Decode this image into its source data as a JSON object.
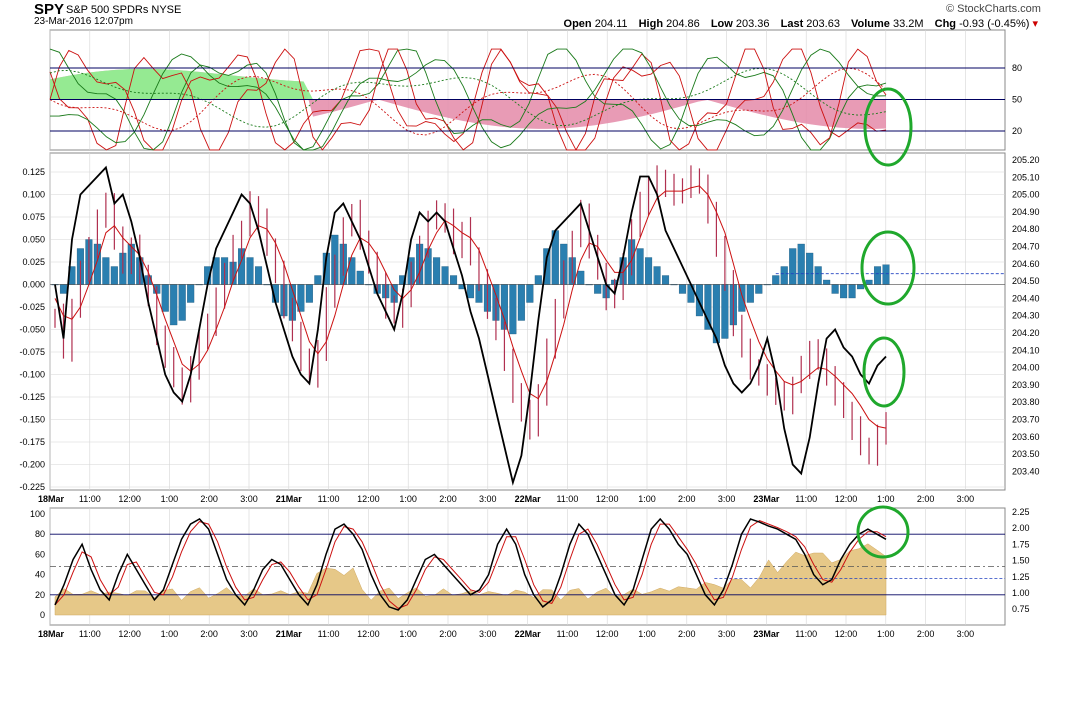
{
  "header": {
    "symbol": "SPY",
    "name": "S&P 500 SPDRs",
    "exchange": "NYSE",
    "datetime": "23-Mar-2016 12:07pm",
    "brand": "© StockCharts.com",
    "open_label": "Open",
    "open": "204.11",
    "high_label": "High",
    "high": "204.86",
    "low_label": "Low",
    "low": "203.36",
    "last_label": "Last",
    "last": "203.63",
    "volume_label": "Volume",
    "volume": "33.2M",
    "chg_label": "Chg",
    "chg": "-0.93 (-0.45%)"
  },
  "colors": {
    "price_bar": "#b03050",
    "ma_line": "#cc1111",
    "osc_line": "#000000",
    "histogram": "#2a7fb0",
    "upper_fill": "#90ee90",
    "lower_fill": "#e48aa8",
    "volume_fill": "#e6c888",
    "annotation": "#1fa82c",
    "grid": "#d6d6d6"
  },
  "x_axis": {
    "top": [
      "18Mar",
      "11:00",
      "12:00",
      "1:00",
      "2:00",
      "3:00",
      "21Mar",
      "11:00",
      "12:00",
      "1:00",
      "2:00",
      "3:00",
      "22Mar",
      "11:00",
      "12:00",
      "1:00",
      "2:00",
      "3:00",
      "23Mar",
      "11:00",
      "12:00",
      "1:00",
      "2:00",
      "3:00"
    ],
    "bottom": [
      "18Mar",
      "11:00",
      "12:00",
      "1:00",
      "2:00",
      "3:00",
      "21Mar",
      "11:00",
      "12:00",
      "1:00",
      "2:00",
      "3:00",
      "22Mar",
      "11:00",
      "12:00",
      "1:00",
      "2:00",
      "3:00",
      "23Mar",
      "11:00",
      "12:00",
      "1:00",
      "2:00",
      "3:00"
    ]
  },
  "chart_data": [
    {
      "type": "line",
      "panel": "upper oscillator",
      "y_ticks": [
        "80",
        "50",
        "20"
      ],
      "reference_levels": [
        80,
        50,
        20
      ],
      "ylim": [
        0,
        100
      ]
    },
    {
      "type": "line",
      "panel": "main price with histogram",
      "y_ticks_left": [
        "0.125",
        "0.100",
        "0.075",
        "0.050",
        "0.025",
        "0.000",
        "-0.025",
        "-0.050",
        "-0.075",
        "-0.100",
        "-0.125",
        "-0.150",
        "-0.175",
        "-0.200",
        "-0.225"
      ],
      "y_ticks_right": [
        "205.20",
        "205.10",
        "205.00",
        "204.90",
        "204.80",
        "204.70",
        "204.60",
        "204.50",
        "204.40",
        "204.30",
        "204.20",
        "204.10",
        "204.00",
        "203.90",
        "203.80",
        "203.70",
        "203.60",
        "203.50",
        "203.40"
      ],
      "ylim_left": [
        -0.225,
        0.125
      ],
      "ylim_right": [
        203.4,
        205.2
      ],
      "price_close": [
        204.3,
        204.1,
        204.35,
        204.55,
        204.7,
        204.85,
        204.95,
        204.75,
        204.6,
        204.7,
        204.55,
        204.4,
        204.2,
        204.05,
        203.95,
        203.85,
        204.0,
        204.15,
        204.25,
        204.4,
        204.55,
        204.7,
        204.8,
        204.95,
        204.85,
        204.7,
        204.55,
        204.35,
        204.2,
        204.05,
        203.95,
        204.1,
        204.4,
        204.6,
        204.8,
        204.9,
        204.75,
        204.6,
        204.5,
        204.35,
        204.3,
        204.4,
        204.55,
        204.7,
        204.85,
        204.9,
        204.85,
        204.7,
        204.8,
        204.65,
        204.5,
        204.35,
        204.2,
        204.05,
        203.85,
        203.75,
        203.65,
        203.85,
        204.1,
        204.35,
        204.55,
        204.75,
        204.9,
        204.7,
        204.55,
        204.4,
        204.45,
        204.6,
        204.8,
        204.95,
        205.05,
        205.1,
        205.05,
        205.0,
        205.05,
        205.1,
        205.05,
        204.9,
        204.7,
        204.5,
        204.25,
        204.1,
        204.0,
        203.95,
        203.9,
        203.85,
        203.8,
        203.9,
        204.0,
        204.1,
        204.05,
        203.95,
        203.85,
        203.75,
        203.65,
        203.55,
        203.5,
        203.6,
        203.7
      ],
      "ma": [
        204.4,
        204.3,
        204.28,
        204.35,
        204.48,
        204.62,
        204.78,
        204.82,
        204.75,
        204.7,
        204.65,
        204.55,
        204.42,
        204.28,
        204.15,
        204.02,
        203.98,
        204.02,
        204.1,
        204.22,
        204.35,
        204.5,
        204.62,
        204.75,
        204.82,
        204.8,
        204.72,
        204.6,
        204.45,
        204.3,
        204.15,
        204.08,
        204.15,
        204.3,
        204.48,
        204.65,
        204.75,
        204.72,
        204.65,
        204.55,
        204.45,
        204.4,
        204.45,
        204.55,
        204.68,
        204.78,
        204.85,
        204.82,
        204.78,
        204.75,
        204.68,
        204.55,
        204.42,
        204.28,
        204.12,
        203.98,
        203.85,
        203.82,
        203.92,
        204.08,
        204.25,
        204.45,
        204.62,
        204.72,
        204.7,
        204.62,
        204.55,
        204.55,
        204.62,
        204.75,
        204.88,
        204.98,
        205.02,
        205.02,
        205.02,
        205.04,
        205.05,
        205.0,
        204.9,
        204.78,
        204.6,
        204.42,
        204.28,
        204.15,
        204.05,
        203.98,
        203.92,
        203.9,
        203.92,
        203.96,
        204.0,
        203.99,
        203.95,
        203.9,
        203.85,
        203.78,
        203.7,
        203.66,
        203.65
      ],
      "oscillator": [
        0.0,
        -0.06,
        0.05,
        0.1,
        0.11,
        0.12,
        0.13,
        0.09,
        0.1,
        0.07,
        0.03,
        -0.02,
        -0.06,
        -0.1,
        -0.12,
        -0.13,
        -0.1,
        -0.05,
        0.0,
        0.04,
        0.06,
        0.08,
        0.1,
        0.09,
        0.06,
        0.02,
        -0.02,
        -0.05,
        -0.08,
        -0.1,
        -0.11,
        -0.05,
        0.03,
        0.08,
        0.09,
        0.07,
        0.05,
        0.02,
        -0.01,
        -0.03,
        -0.05,
        -0.01,
        0.05,
        0.08,
        0.07,
        0.08,
        0.07,
        0.04,
        0.01,
        -0.03,
        -0.06,
        -0.1,
        -0.14,
        -0.18,
        -0.22,
        -0.19,
        -0.12,
        -0.04,
        0.03,
        0.06,
        0.07,
        0.08,
        0.09,
        0.06,
        0.03,
        0.0,
        -0.01,
        0.03,
        0.08,
        0.12,
        0.12,
        0.1,
        0.06,
        0.04,
        0.02,
        0.0,
        -0.02,
        -0.04,
        -0.06,
        -0.09,
        -0.11,
        -0.12,
        -0.11,
        -0.09,
        -0.06,
        -0.1,
        -0.16,
        -0.2,
        -0.21,
        -0.17,
        -0.11,
        -0.06,
        -0.05,
        -0.07,
        -0.08,
        -0.1,
        -0.11,
        -0.09,
        -0.08
      ],
      "histogram": [
        0.0,
        -0.01,
        0.02,
        0.04,
        0.05,
        0.045,
        0.03,
        0.02,
        0.035,
        0.045,
        0.03,
        0.01,
        -0.01,
        -0.03,
        -0.045,
        -0.04,
        -0.02,
        0.0,
        0.02,
        0.03,
        0.03,
        0.025,
        0.04,
        0.03,
        0.02,
        0.0,
        -0.02,
        -0.035,
        -0.04,
        -0.03,
        -0.02,
        0.01,
        0.035,
        0.055,
        0.045,
        0.03,
        0.015,
        0.0,
        -0.01,
        -0.015,
        -0.02,
        0.01,
        0.03,
        0.045,
        0.04,
        0.03,
        0.02,
        0.01,
        -0.005,
        -0.015,
        -0.02,
        -0.03,
        -0.04,
        -0.05,
        -0.055,
        -0.04,
        -0.02,
        0.01,
        0.04,
        0.06,
        0.045,
        0.03,
        0.015,
        0.0,
        -0.01,
        -0.015,
        0.005,
        0.03,
        0.05,
        0.04,
        0.03,
        0.02,
        0.01,
        0.0,
        -0.01,
        -0.02,
        -0.035,
        -0.05,
        -0.065,
        -0.06,
        -0.045,
        -0.03,
        -0.02,
        -0.01,
        0.0,
        0.01,
        0.02,
        0.04,
        0.045,
        0.035,
        0.02,
        0.005,
        -0.01,
        -0.015,
        -0.015,
        -0.005,
        0.005,
        0.02,
        0.022
      ],
      "signal_level": 0.012
    },
    {
      "type": "area",
      "panel": "lower oscillator with volume",
      "y_ticks_left": [
        "100",
        "80",
        "60",
        "40",
        "20",
        "0"
      ],
      "y_ticks_right": [
        "2.25",
        "2.00",
        "1.75",
        "1.50",
        "1.25",
        "1.00",
        "0.75"
      ],
      "ylim_left": [
        0,
        100
      ],
      "ylim_right": [
        0.6,
        2.3
      ],
      "reference_levels": [
        80,
        20
      ],
      "stoch_k": [
        10,
        30,
        55,
        70,
        45,
        25,
        15,
        40,
        60,
        45,
        30,
        15,
        25,
        50,
        75,
        90,
        95,
        85,
        60,
        35,
        20,
        10,
        25,
        45,
        55,
        50,
        35,
        20,
        10,
        30,
        60,
        85,
        90,
        80,
        65,
        40,
        20,
        8,
        5,
        15,
        35,
        55,
        60,
        50,
        40,
        30,
        20,
        25,
        40,
        70,
        85,
        70,
        40,
        20,
        8,
        15,
        40,
        70,
        90,
        80,
        60,
        40,
        20,
        10,
        25,
        55,
        85,
        95,
        85,
        70,
        60,
        40,
        20,
        10,
        25,
        50,
        80,
        95,
        92,
        88,
        85,
        80,
        75,
        60,
        40,
        30,
        35,
        55,
        70,
        80,
        85,
        80,
        75
      ]
    }
  ]
}
